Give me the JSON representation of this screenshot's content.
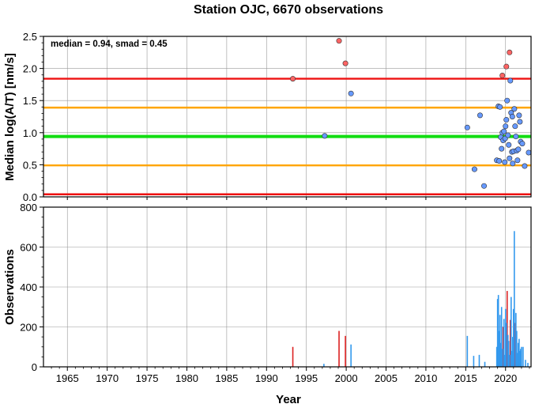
{
  "chart_data": [
    {
      "type": "scatter",
      "title": "Station OJC, 6670 observations",
      "annotation": "median = 0.94, smad = 0.45",
      "xlabel": "Year",
      "ylabel": "Median log(A/T) [nm/s]",
      "xlim": [
        1962,
        2023.2
      ],
      "ylim": [
        0,
        2.5
      ],
      "yticks": [
        "0.0",
        "0.5",
        "1.0",
        "1.5",
        "2.0",
        "2.5"
      ],
      "grid": true,
      "reference_lines": [
        {
          "y": 0.04,
          "color": "#ee1111"
        },
        {
          "y": 0.49,
          "color": "#ffa500"
        },
        {
          "y": 0.94,
          "color": "#11dd11"
        },
        {
          "y": 1.39,
          "color": "#ffa500"
        },
        {
          "y": 1.84,
          "color": "#ee1111"
        }
      ],
      "series": [
        {
          "color": "#ff6464",
          "points": [
            [
              1993.3,
              1.84
            ],
            [
              1999.1,
              2.43
            ],
            [
              1999.9,
              2.08
            ],
            [
              2019.6,
              1.89
            ],
            [
              2020.1,
              2.03
            ],
            [
              2020.5,
              2.25
            ]
          ]
        },
        {
          "color": "#6699ff",
          "points": [
            [
              1997.3,
              0.95
            ],
            [
              2000.6,
              1.61
            ],
            [
              2015.2,
              1.08
            ],
            [
              2016.1,
              0.43
            ],
            [
              2016.8,
              1.27
            ],
            [
              2017.3,
              0.17
            ],
            [
              2018.9,
              0.57
            ],
            [
              2019.1,
              1.41
            ],
            [
              2019.2,
              0.56
            ],
            [
              2019.3,
              1.4
            ],
            [
              2019.4,
              0.93
            ],
            [
              2019.5,
              0.75
            ],
            [
              2019.6,
              1.0
            ],
            [
              2019.7,
              0.88
            ],
            [
              2019.8,
              1.02
            ],
            [
              2019.9,
              0.54
            ],
            [
              2019.95,
              0.91
            ],
            [
              2020.0,
              1.1
            ],
            [
              2020.1,
              1.2
            ],
            [
              2020.2,
              1.5
            ],
            [
              2020.3,
              0.96
            ],
            [
              2020.4,
              0.81
            ],
            [
              2020.5,
              0.6
            ],
            [
              2020.6,
              1.81
            ],
            [
              2020.7,
              1.31
            ],
            [
              2020.8,
              0.7
            ],
            [
              2020.85,
              1.25
            ],
            [
              2020.9,
              0.52
            ],
            [
              2021.0,
              0.71
            ],
            [
              2021.1,
              1.37
            ],
            [
              2021.2,
              1.1
            ],
            [
              2021.3,
              0.94
            ],
            [
              2021.4,
              0.72
            ],
            [
              2021.5,
              0.57
            ],
            [
              2021.6,
              0.74
            ],
            [
              2021.7,
              1.27
            ],
            [
              2021.8,
              1.17
            ],
            [
              2021.9,
              0.86
            ],
            [
              2022.1,
              0.83
            ],
            [
              2022.4,
              0.48
            ],
            [
              2022.9,
              0.69
            ]
          ]
        }
      ]
    },
    {
      "type": "bar",
      "xlabel": "Year",
      "ylabel": "Observations",
      "xlim": [
        1962,
        2023.2
      ],
      "ylim": [
        0,
        800
      ],
      "yticks": [
        "0",
        "200",
        "400",
        "600",
        "800"
      ],
      "xticks": [
        "1965",
        "1970",
        "1975",
        "1980",
        "1985",
        "1990",
        "1995",
        "2000",
        "2005",
        "2010",
        "2015",
        "2020"
      ],
      "grid": true,
      "series": [
        {
          "color": "#dd2222",
          "bars": [
            [
              1993.3,
              100
            ],
            [
              1999.1,
              180
            ],
            [
              1999.9,
              155
            ],
            [
              2019.7,
              200
            ],
            [
              2020.2,
              380
            ],
            [
              2020.6,
              235
            ],
            [
              2021.2,
              220
            ]
          ]
        },
        {
          "color": "#3399ee",
          "bars": [
            [
              1997.2,
              15
            ],
            [
              2000.6,
              112
            ],
            [
              2015.2,
              155
            ],
            [
              2016.0,
              55
            ],
            [
              2016.7,
              60
            ],
            [
              2017.4,
              25
            ],
            [
              2018.9,
              100
            ],
            [
              2019.0,
              340
            ],
            [
              2019.1,
              360
            ],
            [
              2019.2,
              180
            ],
            [
              2019.3,
              260
            ],
            [
              2019.4,
              120
            ],
            [
              2019.5,
              300
            ],
            [
              2019.6,
              90
            ],
            [
              2019.8,
              240
            ],
            [
              2019.9,
              60
            ],
            [
              2020.0,
              290
            ],
            [
              2020.1,
              220
            ],
            [
              2020.3,
              160
            ],
            [
              2020.4,
              130
            ],
            [
              2020.5,
              60
            ],
            [
              2020.7,
              350
            ],
            [
              2020.8,
              80
            ],
            [
              2020.9,
              150
            ],
            [
              2021.0,
              290
            ],
            [
              2021.1,
              680
            ],
            [
              2021.3,
              270
            ],
            [
              2021.4,
              180
            ],
            [
              2021.5,
              70
            ],
            [
              2021.6,
              120
            ],
            [
              2021.7,
              140
            ],
            [
              2021.8,
              80
            ],
            [
              2021.9,
              90
            ],
            [
              2022.0,
              100
            ],
            [
              2022.2,
              100
            ],
            [
              2022.5,
              35
            ],
            [
              2022.8,
              20
            ]
          ]
        }
      ]
    }
  ]
}
